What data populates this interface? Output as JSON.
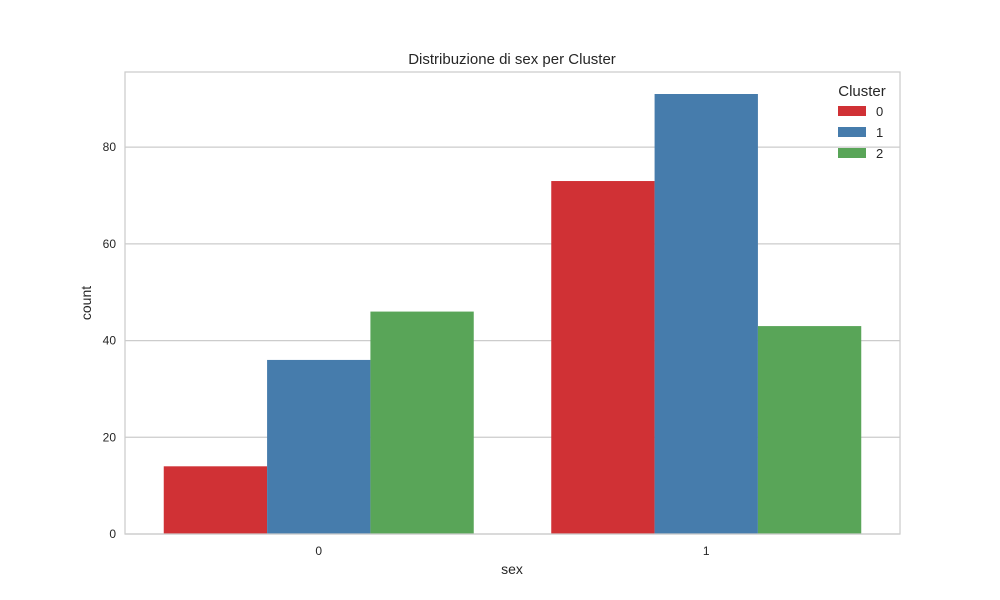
{
  "chart_data": {
    "type": "bar",
    "title": "Distribuzione di sex per Cluster",
    "xlabel": "sex",
    "ylabel": "count",
    "categories": [
      "0",
      "1"
    ],
    "series": [
      {
        "name": "0",
        "color": "#d03135",
        "values": [
          14,
          73
        ]
      },
      {
        "name": "1",
        "color": "#467cac",
        "values": [
          36,
          91
        ]
      },
      {
        "name": "2",
        "color": "#59a558",
        "values": [
          46,
          43
        ]
      }
    ],
    "ylim": [
      0,
      95.55
    ],
    "yticks": [
      0,
      20,
      40,
      60,
      80
    ],
    "grid": true,
    "legend": {
      "title": "Cluster",
      "position": "top-right"
    }
  }
}
